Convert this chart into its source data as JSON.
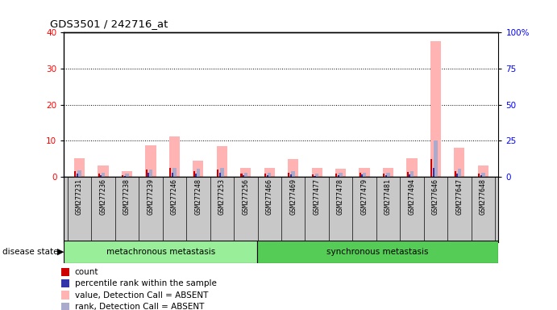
{
  "title": "GDS3501 / 242716_at",
  "samples": [
    "GSM277231",
    "GSM277236",
    "GSM277238",
    "GSM277239",
    "GSM277246",
    "GSM277248",
    "GSM277253",
    "GSM277256",
    "GSM277466",
    "GSM277469",
    "GSM277477",
    "GSM277478",
    "GSM277479",
    "GSM277481",
    "GSM277494",
    "GSM277646",
    "GSM277647",
    "GSM277648"
  ],
  "pink_bars": [
    5.2,
    3.2,
    1.5,
    8.8,
    11.2,
    4.5,
    8.5,
    2.5,
    2.5,
    5.0,
    2.5,
    2.2,
    2.5,
    2.5,
    5.2,
    37.5,
    8.0,
    3.0
  ],
  "blue_bars": [
    1.8,
    1.2,
    0.8,
    2.0,
    2.5,
    2.2,
    2.5,
    1.2,
    1.0,
    1.5,
    0.8,
    1.0,
    1.2,
    1.0,
    1.5,
    10.0,
    2.2,
    1.2
  ],
  "red_bars": [
    1.5,
    0.8,
    0.5,
    2.0,
    2.5,
    1.5,
    2.0,
    0.8,
    0.8,
    1.2,
    0.6,
    0.8,
    1.0,
    0.8,
    1.3,
    5.0,
    1.5,
    0.8
  ],
  "small_blue_bars": [
    0.8,
    0.5,
    0.3,
    1.0,
    1.2,
    0.8,
    1.0,
    0.5,
    0.4,
    0.6,
    0.3,
    0.5,
    0.6,
    0.4,
    0.7,
    2.5,
    0.8,
    0.5
  ],
  "metachronous_count": 8,
  "synchronous_count": 10,
  "ylim_left": [
    0,
    40
  ],
  "ylim_right": [
    0,
    100
  ],
  "yticks_left": [
    0,
    10,
    20,
    30,
    40
  ],
  "yticks_right": [
    0,
    25,
    50,
    75,
    100
  ],
  "ytick_labels_right": [
    "0",
    "25",
    "50",
    "75",
    "100%"
  ],
  "pink_color": "#FFB3B3",
  "blue_color": "#AAAACC",
  "red_color": "#CC0000",
  "dark_blue_color": "#3333AA",
  "bg_color": "#C8C8C8",
  "meta_bg": "#99EE99",
  "sync_bg": "#55CC55",
  "legend_items": [
    "count",
    "percentile rank within the sample",
    "value, Detection Call = ABSENT",
    "rank, Detection Call = ABSENT"
  ],
  "legend_colors": [
    "#CC0000",
    "#3333AA",
    "#FFB3B3",
    "#AAAACC"
  ]
}
